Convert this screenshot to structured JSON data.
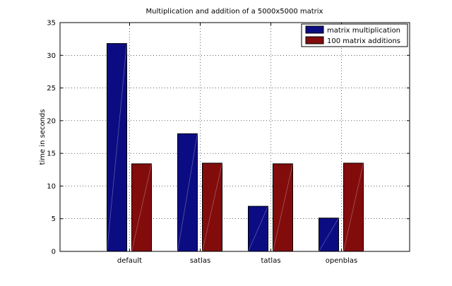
{
  "chart_data": {
    "type": "bar",
    "title": "Multiplication and addition of a 5000x5000 matrix",
    "xlabel": "",
    "ylabel": "time in seconds",
    "categories": [
      "default",
      "satlas",
      "tatlas",
      "openblas"
    ],
    "series": [
      {
        "name": "matrix multiplication",
        "color": "#0c0c82",
        "values": [
          31.8,
          18.0,
          6.9,
          5.1
        ]
      },
      {
        "name": "100 matrix additions",
        "color": "#820c0c",
        "values": [
          13.4,
          13.5,
          13.4,
          13.5
        ]
      }
    ],
    "ylim": [
      0,
      35
    ],
    "yticks": [
      "0",
      "5",
      "10",
      "15",
      "20",
      "25",
      "30",
      "35"
    ],
    "grid": true,
    "legend_position": "top-right"
  }
}
